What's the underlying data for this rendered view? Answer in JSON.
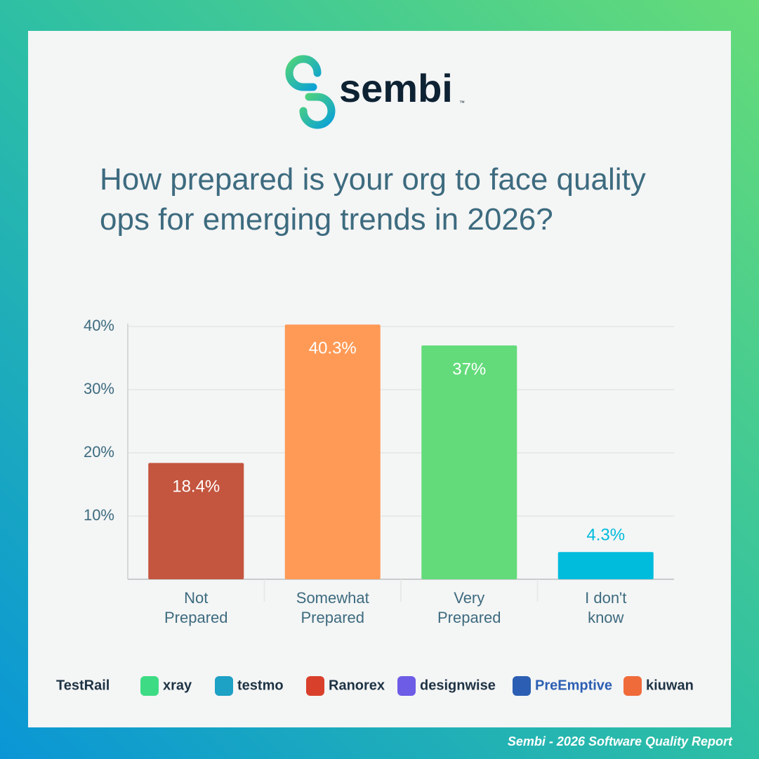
{
  "header": {
    "logo": "sembi",
    "trademark": "™"
  },
  "chart_data": {
    "type": "bar",
    "title": "How prepared is your org to face quality ops for emerging trends in 2026?",
    "categories": [
      "Not Prepared",
      "Somewhat Prepared",
      "Very Prepared",
      "I don't know"
    ],
    "values": [
      18.4,
      40.3,
      37,
      4.3
    ],
    "value_labels": [
      "18.4%",
      "40.3%",
      "37%",
      "4.3%"
    ],
    "colors": [
      "#c4553f",
      "#ff9a56",
      "#63db7a",
      "#00bcdc"
    ],
    "ylim": [
      0,
      40
    ],
    "yticks": [
      {
        "value": 10,
        "label": "10%"
      },
      {
        "value": 20,
        "label": "20%"
      },
      {
        "value": 30,
        "label": "30%"
      },
      {
        "value": 40,
        "label": "40%"
      }
    ],
    "grid": true
  },
  "logos": [
    "TestRail",
    "xray",
    "testmo",
    "Ranorex",
    "designwise",
    "PreEmptive",
    "kiuwan"
  ],
  "footer": "Sembi - 2026 Software Quality Report"
}
